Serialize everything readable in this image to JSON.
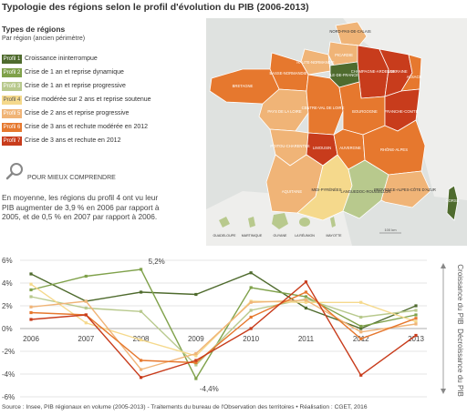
{
  "title": "Typologie des régions selon le profil d'évolution du PIB (2006-2013)",
  "legend": {
    "title": "Types de régions",
    "subtitle": "Par région (ancien périmètre)",
    "items": [
      {
        "tag": "Profil 1",
        "label": "Croissance ininterrompue",
        "color": "#4f6b2e"
      },
      {
        "tag": "Profil 2",
        "label": "Crise de 1 an et reprise dynamique",
        "color": "#7fa14a"
      },
      {
        "tag": "Profil 3",
        "label": "Crise de 1 an et reprise progressive",
        "color": "#b8c98d"
      },
      {
        "tag": "Profil 4",
        "label": "Crise modérée sur 2 ans et reprise soutenue",
        "color": "#f5d98c"
      },
      {
        "tag": "Profil 5",
        "label": "Crise de 2 ans et reprise progressive",
        "color": "#f0b477"
      },
      {
        "tag": "Profil 6",
        "label": "Crise de 3 ans et rechute modérée en 2012",
        "color": "#e6782e"
      },
      {
        "tag": "Profil 7",
        "label": "Crise de 3 ans et rechute en 2012",
        "color": "#c83c1c"
      }
    ]
  },
  "pour_mieux": "POUR MIEUX COMPRENDRE",
  "paragraph": "En moyenne, les régions du profil 4 ont vu leur PIB augmenter de 3,9 % en 2006 par rapport à 2005, et de 0,5 % en 2007 par rapport à 2006.",
  "map": {
    "regions": [
      {
        "name": "NORD-PAS-DE-CALAIS",
        "profile": 5
      },
      {
        "name": "PICARDIE",
        "profile": 5
      },
      {
        "name": "HAUTE-NORMANDIE",
        "profile": 5
      },
      {
        "name": "BASSE-NORMANDIE",
        "profile": 6
      },
      {
        "name": "ÎLE-DE-FRANCE",
        "profile": 1
      },
      {
        "name": "CHAMPAGNE-ARDENNE",
        "profile": 7
      },
      {
        "name": "LORRAINE",
        "profile": 7
      },
      {
        "name": "ALSACE",
        "profile": 6
      },
      {
        "name": "BRETAGNE",
        "profile": 6
      },
      {
        "name": "PAYS DE LA LOIRE",
        "profile": 5
      },
      {
        "name": "CENTRE-VAL DE LOIRE",
        "profile": 6
      },
      {
        "name": "BOURGOGNE",
        "profile": 6
      },
      {
        "name": "FRANCHE-COMTÉ",
        "profile": 7
      },
      {
        "name": "POITOU-CHARENTES",
        "profile": 5
      },
      {
        "name": "LIMOUSIN",
        "profile": 7
      },
      {
        "name": "AUVERGNE",
        "profile": 6
      },
      {
        "name": "RHÔNE-ALPES",
        "profile": 6
      },
      {
        "name": "AQUITAINE",
        "profile": 5
      },
      {
        "name": "MIDI-PYRÉNÉES",
        "profile": 4
      },
      {
        "name": "LANGUEDOC-ROUSSILLON",
        "profile": 3
      },
      {
        "name": "PROVENCE-ALPES-CÔTE D'AZUR",
        "profile": 5
      },
      {
        "name": "CORSE",
        "profile": 1
      }
    ],
    "dom": [
      "GUADELOUPE",
      "MARTINIQUE",
      "GUYANE",
      "LA RÉUNION",
      "MAYOTTE"
    ],
    "scale": "100 km"
  },
  "chart_data": {
    "type": "line",
    "x": [
      "2006",
      "2007",
      "2008",
      "2009",
      "2010",
      "2011",
      "2012",
      "2013"
    ],
    "ylim": [
      -6,
      6
    ],
    "yticks": [
      "-6%",
      "-4%",
      "-2%",
      "0%",
      "2%",
      "4%",
      "6%"
    ],
    "series": [
      {
        "color": "#4f6b2e",
        "values": [
          4.8,
          2.4,
          3.2,
          3.0,
          4.9,
          1.8,
          0.0,
          2.0
        ]
      },
      {
        "color": "#7fa14a",
        "values": [
          3.4,
          4.6,
          5.2,
          -4.4,
          3.6,
          2.8,
          0.2,
          1.2
        ]
      },
      {
        "color": "#b8c98d",
        "values": [
          2.8,
          1.8,
          1.5,
          -3.2,
          1.6,
          2.6,
          1.0,
          1.6
        ]
      },
      {
        "color": "#f5d98c",
        "values": [
          3.9,
          0.5,
          -1.0,
          -2.4,
          2.4,
          2.3,
          2.3,
          0.6
        ]
      },
      {
        "color": "#f0b477",
        "values": [
          1.9,
          2.4,
          -3.6,
          -2.2,
          2.3,
          2.5,
          -0.3,
          0.4
        ]
      },
      {
        "color": "#e6782e",
        "values": [
          1.4,
          1.2,
          -2.8,
          -3.0,
          1.0,
          3.2,
          -0.9,
          0.9
        ]
      },
      {
        "color": "#c83c1c",
        "values": [
          0.8,
          1.2,
          -4.3,
          -2.8,
          0.0,
          4.1,
          -4.1,
          -0.6
        ]
      }
    ],
    "annotations": [
      {
        "text": "5,2%",
        "x": "2008",
        "y": 5.2
      },
      {
        "text": "-4,4%",
        "x": "2009",
        "y": -4.4
      }
    ],
    "side_labels": {
      "up": "Croissance du PIB",
      "down": "Décroissance du PIB"
    }
  },
  "source": "Source : Insee, PIB régionaux en volume (2005-2013) - Traitements du bureau de l'Observation des territoires • Réalisation : CGET, 2016"
}
